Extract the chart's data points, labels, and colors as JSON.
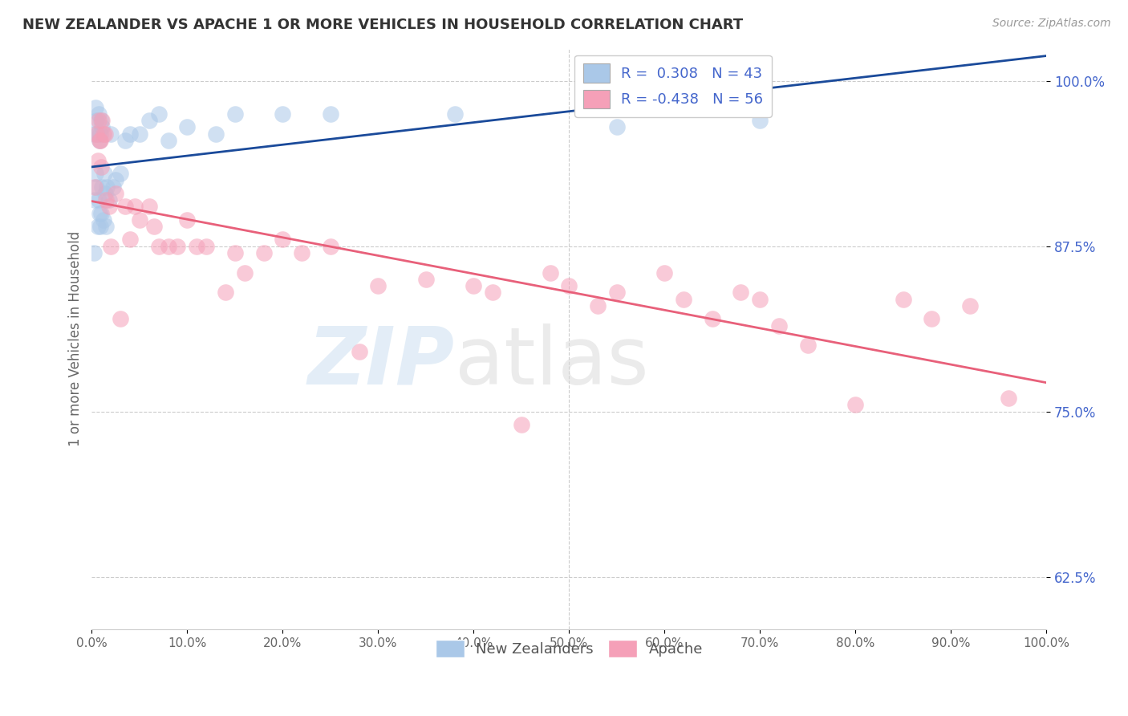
{
  "title": "NEW ZEALANDER VS APACHE 1 OR MORE VEHICLES IN HOUSEHOLD CORRELATION CHART",
  "source": "Source: ZipAtlas.com",
  "ylabel": "1 or more Vehicles in Household",
  "xlim": [
    0.0,
    1.0
  ],
  "ylim": [
    0.585,
    1.025
  ],
  "yticks": [
    0.625,
    0.75,
    0.875,
    1.0
  ],
  "ytick_labels": [
    "62.5%",
    "75.0%",
    "87.5%",
    "100.0%"
  ],
  "R_nz": 0.308,
  "N_nz": 43,
  "R_ap": -0.438,
  "N_ap": 56,
  "nz_color": "#aac8e8",
  "ap_color": "#f5a0b8",
  "nz_line_color": "#1a4a9a",
  "ap_line_color": "#e8607a",
  "background_color": "#ffffff",
  "nz_x": [
    0.002,
    0.003,
    0.003,
    0.004,
    0.004,
    0.005,
    0.005,
    0.006,
    0.006,
    0.007,
    0.007,
    0.008,
    0.008,
    0.009,
    0.009,
    0.01,
    0.01,
    0.011,
    0.011,
    0.012,
    0.013,
    0.014,
    0.015,
    0.016,
    0.018,
    0.02,
    0.022,
    0.025,
    0.03,
    0.035,
    0.04,
    0.05,
    0.06,
    0.07,
    0.08,
    0.1,
    0.13,
    0.15,
    0.2,
    0.25,
    0.38,
    0.55,
    0.7
  ],
  "nz_y": [
    0.87,
    0.91,
    0.96,
    0.93,
    0.98,
    0.92,
    0.97,
    0.89,
    0.96,
    0.91,
    0.975,
    0.9,
    0.955,
    0.89,
    0.96,
    0.9,
    0.97,
    0.92,
    0.965,
    0.895,
    0.93,
    0.915,
    0.89,
    0.92,
    0.91,
    0.96,
    0.92,
    0.925,
    0.93,
    0.955,
    0.96,
    0.96,
    0.97,
    0.975,
    0.955,
    0.965,
    0.96,
    0.975,
    0.975,
    0.975,
    0.975,
    0.965,
    0.97
  ],
  "ap_x": [
    0.003,
    0.005,
    0.006,
    0.007,
    0.008,
    0.009,
    0.01,
    0.011,
    0.012,
    0.014,
    0.015,
    0.018,
    0.02,
    0.025,
    0.03,
    0.035,
    0.04,
    0.045,
    0.05,
    0.06,
    0.065,
    0.07,
    0.08,
    0.09,
    0.1,
    0.11,
    0.12,
    0.14,
    0.15,
    0.16,
    0.18,
    0.2,
    0.22,
    0.25,
    0.28,
    0.3,
    0.35,
    0.4,
    0.42,
    0.45,
    0.48,
    0.5,
    0.53,
    0.55,
    0.6,
    0.62,
    0.65,
    0.68,
    0.7,
    0.72,
    0.75,
    0.8,
    0.85,
    0.88,
    0.92,
    0.96
  ],
  "ap_y": [
    0.92,
    0.96,
    0.94,
    0.97,
    0.955,
    0.955,
    0.935,
    0.97,
    0.96,
    0.96,
    0.91,
    0.905,
    0.875,
    0.915,
    0.82,
    0.905,
    0.88,
    0.905,
    0.895,
    0.905,
    0.89,
    0.875,
    0.875,
    0.875,
    0.895,
    0.875,
    0.875,
    0.84,
    0.87,
    0.855,
    0.87,
    0.88,
    0.87,
    0.875,
    0.795,
    0.845,
    0.85,
    0.845,
    0.84,
    0.74,
    0.855,
    0.845,
    0.83,
    0.84,
    0.855,
    0.835,
    0.82,
    0.84,
    0.835,
    0.815,
    0.8,
    0.755,
    0.835,
    0.82,
    0.83,
    0.76
  ]
}
